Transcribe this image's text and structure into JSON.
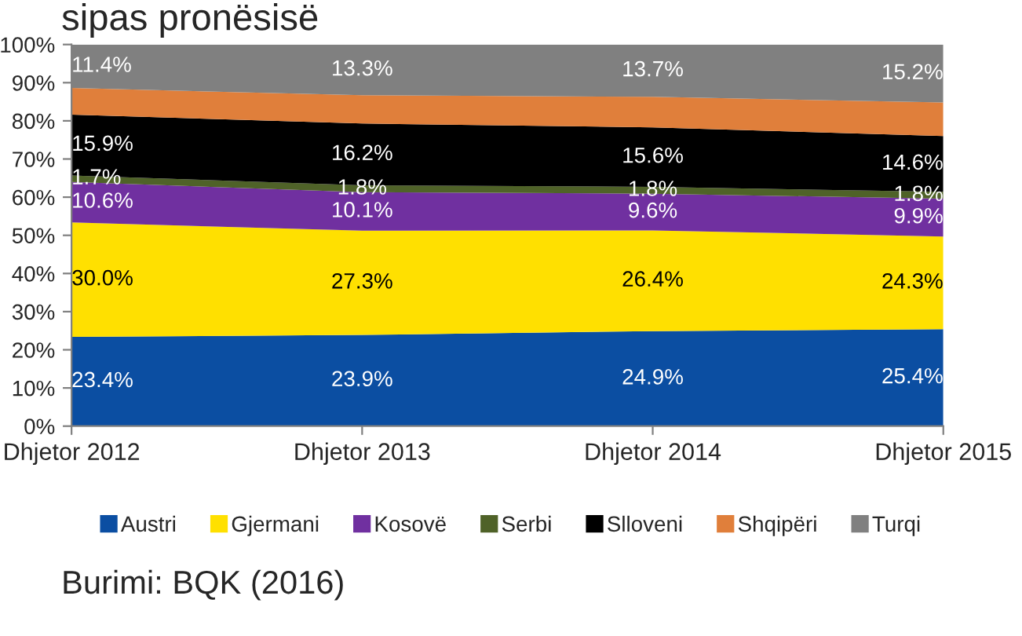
{
  "chart_data": {
    "type": "area",
    "stacked": true,
    "title": "sipas pronësisë",
    "categories": [
      "Dhjetor 2012",
      "Dhjetor 2013",
      "Dhjetor 2014",
      "Dhjetor 2015"
    ],
    "series": [
      {
        "name": "Austri",
        "color": "#0b4ea2",
        "values": [
          23.4,
          23.9,
          24.9,
          25.4
        ],
        "value_labels": [
          "23.4%",
          "23.9%",
          "24.9%",
          "25.4%"
        ]
      },
      {
        "name": "Gjermani",
        "color": "#ffe000",
        "values": [
          30.0,
          27.3,
          26.4,
          24.3
        ],
        "value_labels": [
          "30.0%",
          "27.3%",
          "26.4%",
          "24.3%"
        ]
      },
      {
        "name": "Kosovë",
        "color": "#7030a0",
        "values": [
          10.6,
          10.1,
          9.6,
          9.9
        ],
        "value_labels": [
          "10.6%",
          "10.1%",
          "9.6%",
          "9.9%"
        ]
      },
      {
        "name": "Serbi",
        "color": "#4f6228",
        "values": [
          1.7,
          1.8,
          1.8,
          1.8
        ],
        "value_labels": [
          "1.7%",
          "1.8%",
          "1.8%",
          "1.8%"
        ]
      },
      {
        "name": "Slloveni",
        "color": "#000000",
        "values": [
          15.9,
          16.2,
          15.6,
          14.6
        ],
        "value_labels": [
          "15.9%",
          "16.2%",
          "15.6%",
          "14.6%"
        ]
      },
      {
        "name": "Shqipëri",
        "color": "#e07f3b",
        "values": [
          7.0,
          7.4,
          8.0,
          8.8
        ],
        "value_labels": [
          null,
          null,
          null,
          null
        ]
      },
      {
        "name": "Turqi",
        "color": "#808080",
        "values": [
          11.4,
          13.3,
          13.7,
          15.2
        ],
        "value_labels": [
          "11.4%",
          "13.3%",
          "13.7%",
          "15.2%"
        ]
      }
    ],
    "ylim": [
      0,
      100
    ],
    "yticks": [
      {
        "value": 0,
        "label": "0%"
      },
      {
        "value": 10,
        "label": "10%"
      },
      {
        "value": 20,
        "label": "20%"
      },
      {
        "value": 30,
        "label": "30%"
      },
      {
        "value": 40,
        "label": "40%"
      },
      {
        "value": 50,
        "label": "50%"
      },
      {
        "value": 60,
        "label": "60%"
      },
      {
        "value": 70,
        "label": "70%"
      },
      {
        "value": 80,
        "label": "80%"
      },
      {
        "value": 90,
        "label": "90%"
      },
      {
        "value": 100,
        "label": "100%"
      }
    ],
    "grid": false,
    "legend": "bottom",
    "annotations": [
      "Burimi: BQK (2016)"
    ]
  }
}
